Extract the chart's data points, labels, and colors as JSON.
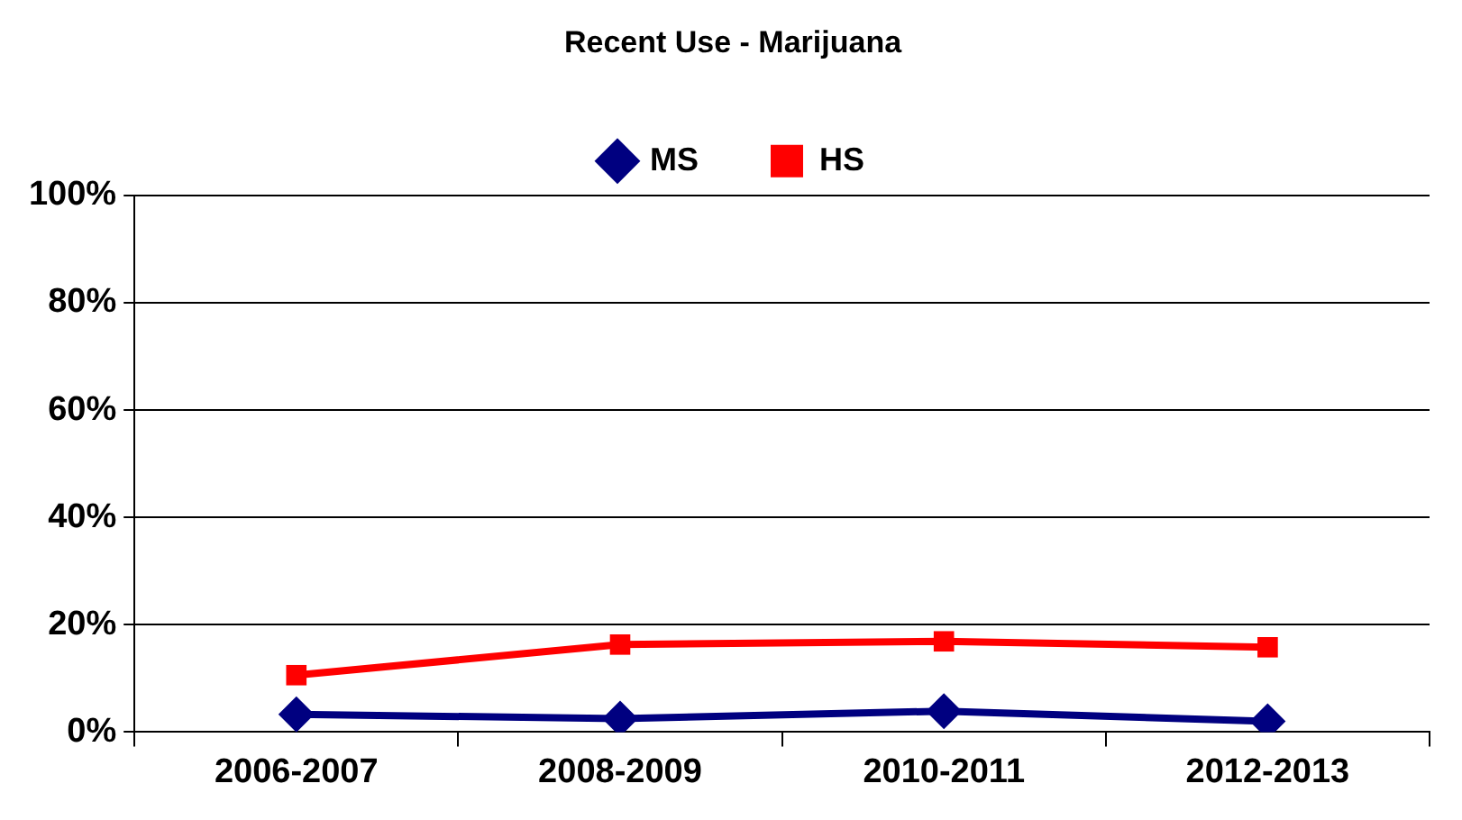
{
  "chart_data": {
    "type": "line",
    "title": "Recent Use - Marijuana",
    "categories": [
      "2006-2007",
      "2008-2009",
      "2010-2011",
      "2012-2013"
    ],
    "series": [
      {
        "name": "MS",
        "color": "#000080",
        "values": [
          3.3,
          2.5,
          3.9,
          2.0
        ],
        "marker": "diamond"
      },
      {
        "name": "HS",
        "color": "#ff0000",
        "values": [
          10.6,
          16.3,
          16.9,
          15.8
        ],
        "marker": "square"
      }
    ],
    "ylim": [
      0,
      100
    ],
    "yticks": [
      {
        "value": 0,
        "label": "0%"
      },
      {
        "value": 20,
        "label": "20%"
      },
      {
        "value": 40,
        "label": "40%"
      },
      {
        "value": 60,
        "label": "60%"
      },
      {
        "value": 80,
        "label": "80%"
      },
      {
        "value": 100,
        "label": "100%"
      }
    ],
    "grid": "y",
    "legend": "top",
    "line_style": "solid"
  }
}
